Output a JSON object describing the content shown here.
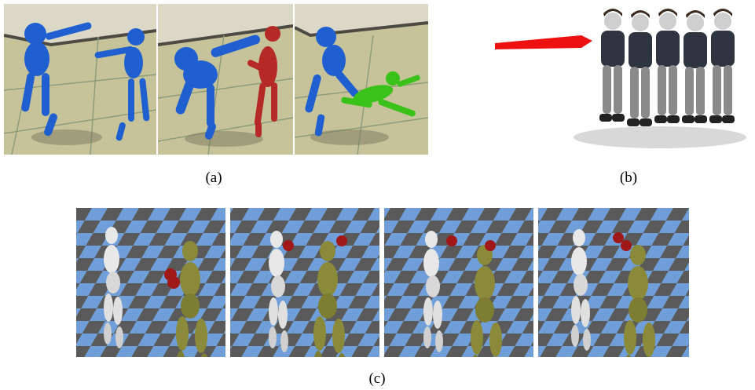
{
  "figure": {
    "captions": {
      "a": "(a)",
      "b": "(b)",
      "c": "(c)"
    },
    "colors": {
      "floor_tan": "#c6c39a",
      "floor_line": "#8f9c7a",
      "wall_gray": "#dcd8c8",
      "wall_dark": "#4c4a42",
      "blue_fighter": "#1f5fd0",
      "red_fighter": "#b52a26",
      "green_fighter": "#3ac21a",
      "arrow_red": "#ee1111",
      "character_shirt": "#2e3440",
      "character_pants": "#8a8a8a",
      "checker_blue": "#6f9ed8",
      "checker_gray": "#5a5a5a",
      "white_boxer": "#e8e8e8",
      "olive_boxer": "#8a8a3a",
      "glove_red": "#a01818"
    }
  }
}
